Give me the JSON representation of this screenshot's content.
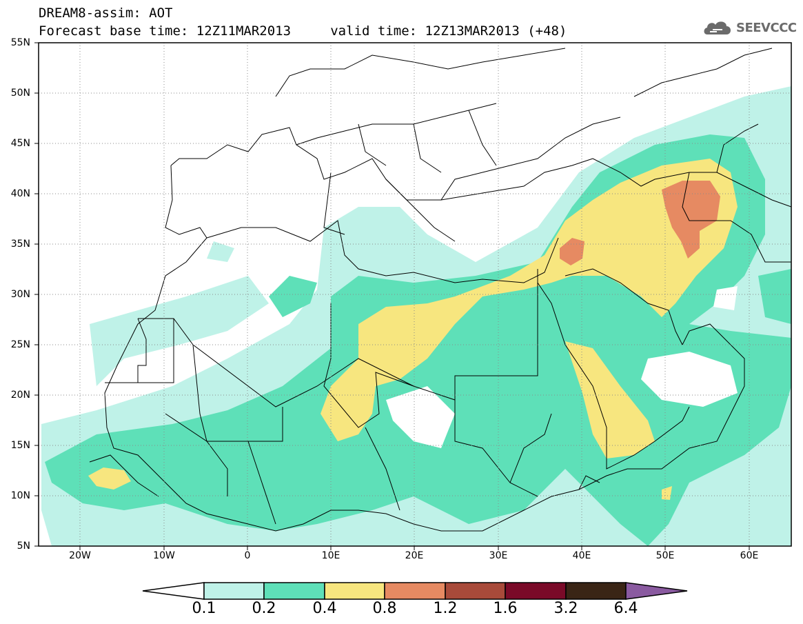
{
  "header": {
    "line1": "DREAM8-assim: AOT",
    "line2": "Forecast base time: 12Z11MAR2013     valid time: 12Z13MAR2013 (+48)",
    "logo_text": "SEEVCCC"
  },
  "map": {
    "type": "contour-filled",
    "lat_labels": [
      "55N",
      "50N",
      "45N",
      "40N",
      "35N",
      "30N",
      "25N",
      "20N",
      "15N",
      "10N",
      "5N"
    ],
    "lon_labels": [
      "20W",
      "10W",
      "0",
      "10E",
      "20E",
      "30E",
      "40E",
      "50E",
      "60E"
    ],
    "lat_range": [
      5,
      55
    ],
    "lon_range": [
      -25,
      65
    ],
    "grid": true
  },
  "colorbar": {
    "levels": [
      "0.1",
      "0.2",
      "0.4",
      "0.8",
      "1.2",
      "1.6",
      "3.2",
      "6.4"
    ],
    "colors": [
      "#ffffff",
      "#bff2e8",
      "#5ee0b8",
      "#f7e67f",
      "#e68a62",
      "#a84a3a",
      "#7a0a28",
      "#3a2515",
      "#8a5aa0"
    ]
  }
}
